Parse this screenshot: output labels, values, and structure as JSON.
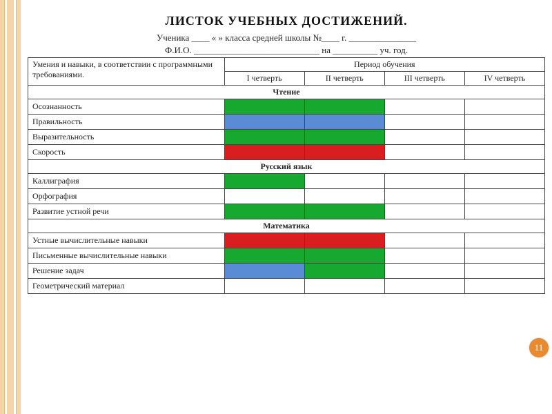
{
  "title": "ЛИСТОК  УЧЕБНЫХ   ДОСТИЖЕНИЙ.",
  "sub1": "Ученика ____ «   » класса средней школы №____ г. _______________",
  "sub2": "Ф.И.О. ____________________________ на __________ уч. год.",
  "header": {
    "skills": "Умения и навыки, в соответствии с программными требованиями.",
    "period": "Период обучения",
    "q1": "I четверть",
    "q2": "II четверть",
    "q3": "III четверть",
    "q4": "IV четверть"
  },
  "colors": {
    "green": "#17a830",
    "blue": "#5a8cd6",
    "red": "#d81e1e",
    "white": "#ffffff"
  },
  "sections": [
    {
      "name": "Чтение",
      "rows": [
        {
          "label": "Осознанность",
          "cells": [
            "green",
            "green",
            "white",
            "white"
          ]
        },
        {
          "label": "Правильность",
          "cells": [
            "blue",
            "blue",
            "white",
            "white"
          ]
        },
        {
          "label": "Выразительность",
          "cells": [
            "green",
            "green",
            "white",
            "white"
          ]
        },
        {
          "label": "Скорость",
          "cells": [
            "red",
            "red",
            "white",
            "white"
          ]
        }
      ]
    },
    {
      "name": "Русский язык",
      "rows": [
        {
          "label": "Каллиграфия",
          "cells": [
            "green",
            "white",
            "white",
            "white"
          ]
        },
        {
          "label": "Орфография",
          "cells": [
            "white",
            "white",
            "white",
            "white"
          ]
        },
        {
          "label": "Развитие устной речи",
          "cells": [
            "green",
            "green",
            "white",
            "white"
          ]
        }
      ]
    },
    {
      "name": "Математика",
      "rows": [
        {
          "label": "Устные вычислительные навыки",
          "cells": [
            "red",
            "red",
            "white",
            "white"
          ]
        },
        {
          "label": "Письменные вычислительные навыки",
          "cells": [
            "green",
            "green",
            "white",
            "white"
          ]
        },
        {
          "label": "Решение задач",
          "cells": [
            "blue",
            "green",
            "white",
            "white"
          ]
        },
        {
          "label": "Геометрический материал",
          "cells": [
            "white",
            "white",
            "white",
            "white"
          ]
        }
      ]
    }
  ],
  "page_number": "11"
}
